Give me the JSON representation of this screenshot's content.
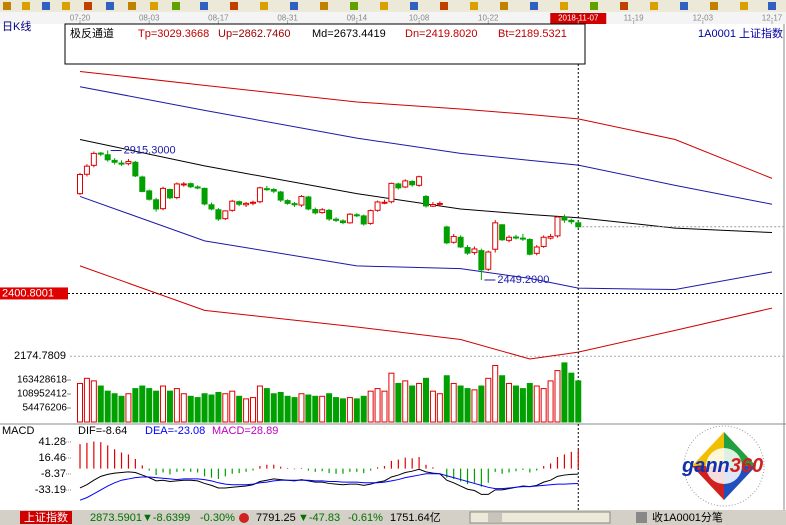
{
  "period_label": "日K线",
  "logo": {
    "word": "gann",
    "number": "360"
  },
  "status_bar": {
    "index_name": "上证指数",
    "items": [
      "2873.5901",
      "▼-8.6399",
      "-0.30%",
      "7791.25",
      "▼-47.83",
      "-0.61%",
      "1751.64亿"
    ],
    "right": "收1A0001分笔"
  },
  "chart_data": [
    {
      "type": "candlestick",
      "indicator": "极反通道",
      "indicator_values": [
        "Tp=3029.3668",
        "Up=2862.7460",
        "Md=2673.4419",
        "Dn=2419.8020",
        "Bt=2189.5321"
      ],
      "symbol": "1A0001  上证指数",
      "xlim": [
        -1.445,
        102.02
      ],
      "xticks": [
        {
          "value": 0,
          "label": "07-20"
        },
        {
          "value": 10,
          "label": "08-03"
        },
        {
          "value": 20,
          "label": "08-17"
        },
        {
          "value": 30,
          "label": "08-31"
        },
        {
          "value": 40,
          "label": "09-14"
        },
        {
          "value": 49,
          "label": "10-08"
        },
        {
          "value": 59,
          "label": "10-22"
        },
        {
          "value": 72,
          "label": "2018-11-07"
        },
        {
          "value": 80,
          "label": "11-19"
        },
        {
          "value": 90,
          "label": "12-03"
        },
        {
          "value": 100,
          "label": "12-17"
        }
      ],
      "ylim": [
        2139.6,
        3349.2
      ],
      "yticks": [
        2174.7809
      ],
      "cursor": {
        "x": 72,
        "price": 2400.8001
      },
      "up_color": "#e00000",
      "down_color": "#00a000",
      "open": [
        2760,
        2830,
        2862,
        2906,
        2900,
        2880,
        2870,
        2868,
        2873,
        2820,
        2770,
        2738,
        2706,
        2775,
        2746,
        2792,
        2796,
        2784,
        2779,
        2720,
        2702,
        2670,
        2700,
        2731,
        2720,
        2726,
        2731,
        2778,
        2775,
        2766,
        2735,
        2724,
        2719,
        2748,
        2703,
        2692,
        2700,
        2668,
        2662,
        2655,
        2684,
        2680,
        2653,
        2700,
        2728,
        2731,
        2795,
        2784,
        2804,
        2790,
        2750,
        2715,
        2722,
        2640,
        2585,
        2603,
        2566,
        2548,
        2555,
        2488,
        2560,
        2648,
        2592,
        2604,
        2600,
        2595,
        2545,
        2570,
        2600,
        2608,
        2675,
        2664,
        2655
      ],
      "high": [
        2835,
        2866,
        2912,
        2910,
        2915.3,
        2888,
        2880,
        2885,
        2878,
        2825,
        2775,
        2745,
        2785,
        2778,
        2800,
        2802,
        2800,
        2790,
        2782,
        2728,
        2708,
        2700,
        2738,
        2735,
        2730,
        2735,
        2785,
        2788,
        2780,
        2770,
        2740,
        2730,
        2755,
        2752,
        2710,
        2708,
        2705,
        2675,
        2668,
        2690,
        2690,
        2685,
        2703,
        2735,
        2738,
        2800,
        2800,
        2812,
        2808,
        2825,
        2755,
        2730,
        2732,
        2645,
        2615,
        2610,
        2575,
        2570,
        2562,
        2555,
        2665,
        2650,
        2610,
        2612,
        2615,
        2600,
        2575,
        2610,
        2615,
        2680,
        2685,
        2670,
        2662
      ],
      "low": [
        2755,
        2822,
        2855,
        2895,
        2875,
        2865,
        2860,
        2862,
        2820,
        2765,
        2735,
        2695,
        2700,
        2740,
        2740,
        2785,
        2780,
        2776,
        2718,
        2700,
        2662,
        2665,
        2695,
        2715,
        2712,
        2718,
        2725,
        2770,
        2762,
        2730,
        2720,
        2712,
        2712,
        2700,
        2685,
        2688,
        2662,
        2658,
        2650,
        2652,
        2675,
        2645,
        2648,
        2695,
        2722,
        2725,
        2775,
        2780,
        2785,
        2785,
        2710,
        2712,
        2715,
        2578,
        2580,
        2565,
        2540,
        2540,
        2449.2,
        2482,
        2548,
        2590,
        2585,
        2595,
        2590,
        2538,
        2538,
        2565,
        2595,
        2602,
        2655,
        2650,
        2635
      ],
      "close": [
        2829,
        2859,
        2905,
        2903,
        2882,
        2873,
        2869,
        2876,
        2824,
        2768,
        2740,
        2705,
        2779,
        2745,
        2795,
        2795,
        2785,
        2781,
        2723,
        2705,
        2669,
        2698,
        2733,
        2722,
        2725,
        2729,
        2781,
        2777,
        2769,
        2737,
        2725,
        2720,
        2750,
        2705,
        2691,
        2702,
        2669,
        2664,
        2656,
        2686,
        2682,
        2651,
        2699,
        2730,
        2729,
        2797,
        2781,
        2806,
        2792,
        2821,
        2716,
        2721,
        2725,
        2583,
        2606,
        2568,
        2546,
        2561,
        2486,
        2550,
        2655,
        2594,
        2603,
        2603,
        2598,
        2542,
        2568,
        2603,
        2606,
        2676,
        2665,
        2659,
        2641
      ],
      "annotations": [
        {
          "x": 4,
          "value": 2915.3,
          "label": "2915.3000"
        },
        {
          "x": 58,
          "value": 2449.2,
          "label": "2449.2000"
        }
      ],
      "bands": {
        "x": [
          0,
          18,
          40,
          55,
          65,
          72,
          86,
          100
        ],
        "series": [
          {
            "color": "#d00000",
            "values": [
              3200,
              3150,
              3090,
              3065,
              3045,
              3029.3668,
              2955,
              2815
            ]
          },
          {
            "color": "#1a1aa8",
            "values": [
              3145,
              3060,
              2960,
              2905,
              2880,
              2862.746,
              2790,
              2722
            ]
          },
          {
            "color": "#000000",
            "values": [
              2955,
              2860,
              2760,
              2705,
              2685,
              2673.4419,
              2636,
              2620
            ]
          },
          {
            "color": "#1a1aa8",
            "values": [
              2750,
              2590,
              2500,
              2490,
              2455,
              2419.802,
              2415,
              2478
            ]
          },
          {
            "color": "#d00000",
            "values": [
              2500,
              2340,
              2280,
              2235,
              2165,
              2189.5321,
              2268,
              2348
            ]
          }
        ]
      }
    },
    {
      "type": "bar",
      "ylim": [
        0,
        233500000
      ],
      "yticks": [
        54476206,
        108952412,
        163428618
      ],
      "values": [
        150000000,
        170000000,
        160000000,
        140000000,
        120000000,
        110000000,
        100000000,
        110000000,
        130000000,
        140000000,
        130000000,
        120000000,
        140000000,
        120000000,
        130000000,
        110000000,
        100000000,
        95000000,
        110000000,
        105000000,
        115000000,
        110000000,
        120000000,
        100000000,
        90000000,
        95000000,
        140000000,
        130000000,
        110000000,
        115000000,
        100000000,
        95000000,
        110000000,
        105000000,
        100000000,
        100000000,
        110000000,
        95000000,
        90000000,
        95000000,
        90000000,
        100000000,
        120000000,
        130000000,
        120000000,
        190000000,
        150000000,
        160000000,
        140000000,
        150000000,
        170000000,
        120000000,
        110000000,
        180000000,
        150000000,
        140000000,
        130000000,
        125000000,
        140000000,
        170000000,
        220000000,
        180000000,
        150000000,
        140000000,
        130000000,
        150000000,
        140000000,
        130000000,
        160000000,
        200000000,
        230000000,
        190000000,
        160000000
      ]
    },
    {
      "type": "macd",
      "title": "MACD",
      "ylim": [
        -61.1,
        50.6
      ],
      "yticks": [
        41.28,
        16.46,
        -8.37,
        -33.19
      ],
      "series": [
        {
          "name": "DIF=-8.64",
          "color": "#000000",
          "values": [
            -30,
            -25,
            -18,
            -12,
            -9,
            -7,
            -6,
            -5,
            -6,
            -10,
            -14,
            -19,
            -18,
            -20,
            -19,
            -18,
            -18,
            -19,
            -23,
            -26,
            -30,
            -30,
            -29,
            -28,
            -27,
            -25,
            -20,
            -18,
            -16,
            -17,
            -18,
            -19,
            -17,
            -19,
            -21,
            -21,
            -23,
            -24,
            -25,
            -24,
            -24,
            -26,
            -24,
            -21,
            -19,
            -13,
            -10,
            -6,
            -4,
            -1,
            -5,
            -7,
            -8,
            -18,
            -22,
            -27,
            -32,
            -34,
            -40,
            -40,
            -33,
            -33,
            -31,
            -29,
            -27,
            -28,
            -26,
            -21,
            -18,
            -12,
            -10,
            -9,
            -8.64
          ]
        },
        {
          "name": "DEA=-23.08",
          "color": "#0000ff",
          "values": [
            -49,
            -45,
            -39,
            -33,
            -27,
            -22,
            -18,
            -16,
            -14,
            -13,
            -13,
            -14,
            -15,
            -16,
            -17,
            -16,
            -16,
            -16,
            -17,
            -19,
            -22,
            -24,
            -25,
            -25,
            -25,
            -24,
            -22,
            -21,
            -19,
            -18,
            -18,
            -18,
            -18,
            -18,
            -19,
            -19,
            -20,
            -20,
            -21,
            -21,
            -21,
            -22,
            -22,
            -22,
            -21,
            -19,
            -17,
            -14,
            -12,
            -10,
            -8,
            -8,
            -8,
            -11,
            -14,
            -17,
            -20,
            -23,
            -26,
            -29,
            -31,
            -31,
            -30,
            -29,
            -28,
            -28,
            -27,
            -26,
            -25,
            -24,
            -24,
            -23.5,
            -23.08
          ]
        }
      ],
      "histogram_name": "MACD=28.89",
      "histogram_color": "#c000c0",
      "histogram": [
        38,
        40,
        42,
        41,
        36,
        30,
        25,
        22,
        15,
        5,
        -3,
        -10,
        -6,
        -9,
        -5,
        -4,
        -5,
        -6,
        -12,
        -14,
        -16,
        -12,
        -8,
        -7,
        -5,
        -3,
        4,
        6,
        6,
        3,
        1,
        -1,
        1,
        -3,
        -5,
        -4,
        -7,
        -8,
        -8,
        -5,
        -5,
        -7,
        -3,
        2,
        4,
        12,
        14,
        17,
        16,
        18,
        6,
        2,
        0,
        -14,
        -16,
        -20,
        -24,
        -22,
        -28,
        -22,
        -5,
        -8,
        -6,
        -4,
        -2,
        -6,
        -3,
        4,
        8,
        18,
        22,
        26,
        28.89
      ]
    }
  ]
}
